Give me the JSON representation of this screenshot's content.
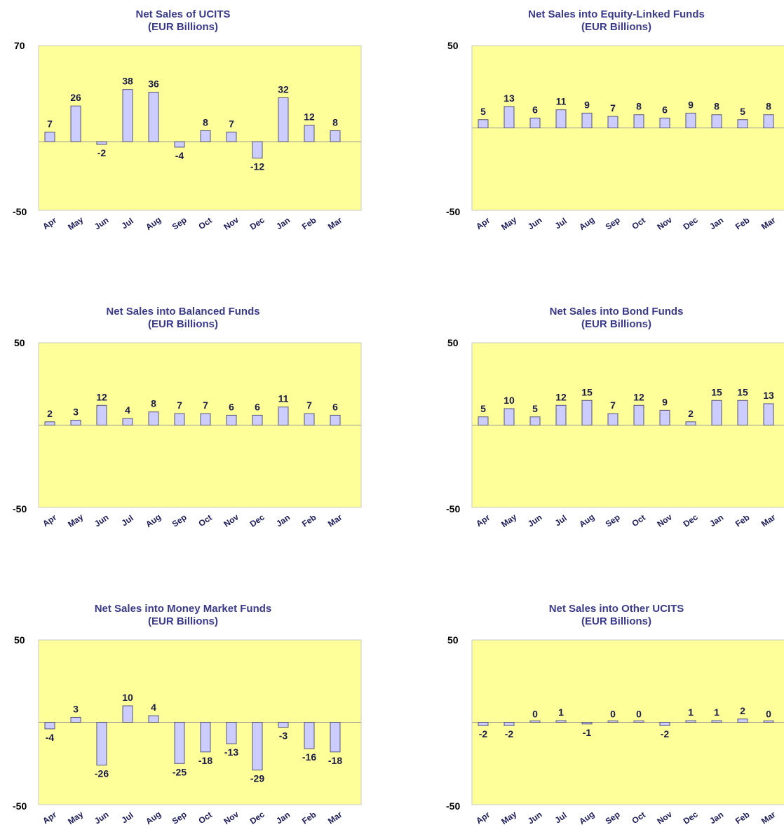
{
  "colors": {
    "plot_bg": "#ffff99",
    "bar_fill": "#ccccff",
    "title": "#3a3a8c"
  },
  "chart_data": [
    {
      "type": "bar",
      "title": "Net Sales of UCITS",
      "subtitle": "(EUR Billions)",
      "categories": [
        "Apr",
        "May",
        "Jun",
        "Jul",
        "Aug",
        "Sep",
        "Oct",
        "Nov",
        "Dec",
        "Jan",
        "Feb",
        "Mar"
      ],
      "values": [
        7,
        26,
        -2,
        38,
        36,
        -4,
        8,
        7,
        -12,
        32,
        12,
        8
      ],
      "labels": [
        "7",
        "26",
        "-2",
        "38",
        "36",
        "-4",
        "8",
        "7",
        "-12",
        "32",
        "12",
        "8"
      ],
      "ylim": [
        -50,
        70
      ],
      "yticks": [
        "70",
        "-50"
      ],
      "grid": false
    },
    {
      "type": "bar",
      "title": "Net Sales into Equity-Linked Funds",
      "subtitle": "(EUR Billions)",
      "categories": [
        "Apr",
        "May",
        "Jun",
        "Jul",
        "Aug",
        "Sep",
        "Oct",
        "Nov",
        "Dec",
        "Jan",
        "Feb",
        "Mar"
      ],
      "values": [
        5,
        13,
        6,
        11,
        9,
        7,
        8,
        6,
        9,
        8,
        5,
        8
      ],
      "labels": [
        "5",
        "13",
        "6",
        "11",
        "9",
        "7",
        "8",
        "6",
        "9",
        "8",
        "5",
        "8"
      ],
      "ylim": [
        -50,
        50
      ],
      "yticks": [
        "50",
        "-50"
      ],
      "grid": false
    },
    {
      "type": "bar",
      "title": "Net Sales into Balanced Funds",
      "subtitle": "(EUR Billions)",
      "categories": [
        "Apr",
        "May",
        "Jun",
        "Jul",
        "Aug",
        "Sep",
        "Oct",
        "Nov",
        "Dec",
        "Jan",
        "Feb",
        "Mar"
      ],
      "values": [
        2,
        3,
        12,
        4,
        8,
        7,
        7,
        6,
        6,
        11,
        7,
        6
      ],
      "labels": [
        "2",
        "3",
        "12",
        "4",
        "8",
        "7",
        "7",
        "6",
        "6",
        "11",
        "7",
        "6"
      ],
      "ylim": [
        -50,
        50
      ],
      "yticks": [
        "50",
        "-50"
      ],
      "grid": false
    },
    {
      "type": "bar",
      "title": "Net Sales into Bond Funds",
      "subtitle": "(EUR Billions)",
      "categories": [
        "Apr",
        "May",
        "Jun",
        "Jul",
        "Aug",
        "Sep",
        "Oct",
        "Nov",
        "Dec",
        "Jan",
        "Feb",
        "Mar"
      ],
      "values": [
        5,
        10,
        5,
        12,
        15,
        7,
        12,
        9,
        2,
        15,
        15,
        13
      ],
      "labels": [
        "5",
        "10",
        "5",
        "12",
        "15",
        "7",
        "12",
        "9",
        "2",
        "15",
        "15",
        "13"
      ],
      "ylim": [
        -50,
        50
      ],
      "yticks": [
        "50",
        "-50"
      ],
      "grid": false
    },
    {
      "type": "bar",
      "title": "Net Sales into Money Market Funds",
      "subtitle": "(EUR Billions)",
      "categories": [
        "Apr",
        "May",
        "Jun",
        "Jul",
        "Aug",
        "Sep",
        "Oct",
        "Nov",
        "Dec",
        "Jan",
        "Feb",
        "Mar"
      ],
      "values": [
        -4,
        3,
        -26,
        10,
        4,
        -25,
        -18,
        -13,
        -29,
        -3,
        -16,
        -18
      ],
      "labels": [
        "-4",
        "3",
        "-26",
        "10",
        "4",
        "-25",
        "-18",
        "-13",
        "-29",
        "-3",
        "-16",
        "-18"
      ],
      "ylim": [
        -50,
        50
      ],
      "yticks": [
        "50",
        "-50"
      ],
      "grid": false
    },
    {
      "type": "bar",
      "title": "Net Sales into Other UCITS",
      "subtitle": "(EUR Billions)",
      "categories": [
        "Apr",
        "May",
        "Jun",
        "Jul",
        "Aug",
        "Sep",
        "Oct",
        "Nov",
        "Dec",
        "Jan",
        "Feb",
        "Mar"
      ],
      "values": [
        -2,
        -2,
        0,
        1,
        -1,
        0,
        0,
        -2,
        1,
        1,
        2,
        0
      ],
      "labels": [
        "-2",
        "-2",
        "0",
        "1",
        "-1",
        "0",
        "0",
        "-2",
        "1",
        "1",
        "2",
        "0"
      ],
      "ylim": [
        -50,
        50
      ],
      "yticks": [
        "50",
        "-50"
      ],
      "grid": false
    }
  ]
}
